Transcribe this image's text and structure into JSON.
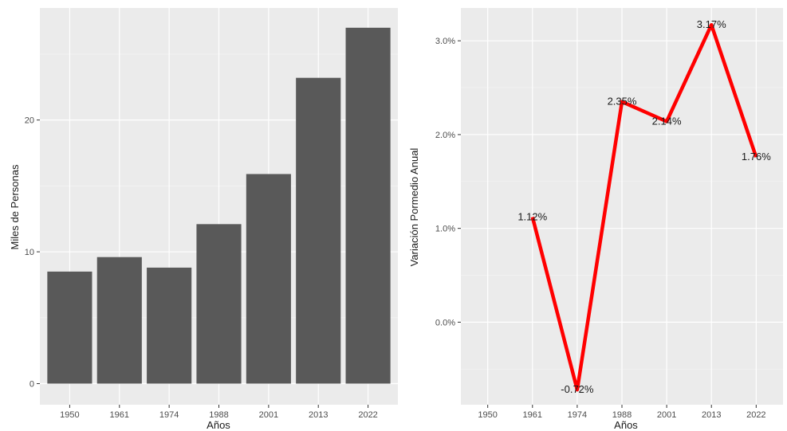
{
  "chart_data": [
    {
      "type": "bar",
      "categories": [
        "1950",
        "1961",
        "1974",
        "1988",
        "2001",
        "2013",
        "2022"
      ],
      "values": [
        8.5,
        9.6,
        8.8,
        12.1,
        15.9,
        23.2,
        27.0
      ],
      "xlabel": "Años",
      "ylabel": "Miles de Personas",
      "ylim": [
        -1.6,
        28.5
      ],
      "yticks": [
        "0",
        "10",
        "20"
      ],
      "ytick_values": [
        0,
        10,
        20
      ],
      "bar_color": "#595959",
      "panel_color": "#ebebeb",
      "grid": true
    },
    {
      "type": "line",
      "categories": [
        "1950",
        "1961",
        "1974",
        "1988",
        "2001",
        "2013",
        "2022"
      ],
      "x": [
        "1961",
        "1974",
        "1988",
        "2001",
        "2013",
        "2022"
      ],
      "values": [
        1.12,
        -0.72,
        2.35,
        2.14,
        3.17,
        1.76
      ],
      "data_labels": [
        "1.12%",
        "-0.72%",
        "2.35%",
        "2.14%",
        "3.17%",
        "1.76%"
      ],
      "xlabel": "Años",
      "ylabel": "Variación Pormedio Anual",
      "ylim": [
        -0.88,
        3.35
      ],
      "yticks": [
        "0.0%",
        "1.0%",
        "2.0%",
        "3.0%"
      ],
      "ytick_values": [
        0,
        1,
        2,
        3
      ],
      "line_color": "#ff0000",
      "panel_color": "#ebebeb",
      "grid": true
    }
  ]
}
